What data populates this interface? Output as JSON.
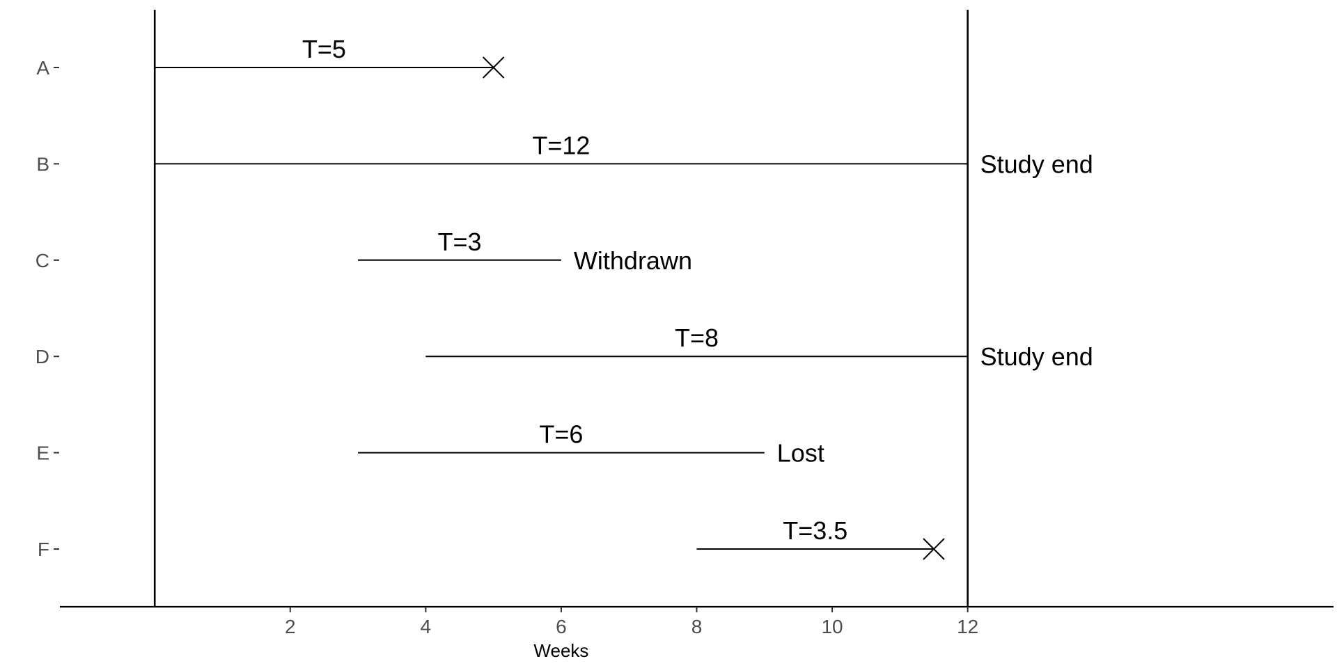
{
  "chart_data": {
    "type": "timeline",
    "xlabel": "Weeks",
    "ylabel": "",
    "x_ticks": [
      2,
      4,
      6,
      8,
      10,
      12
    ],
    "xlim": [
      -1.4,
      17.4
    ],
    "reference_lines": [
      0,
      12
    ],
    "grid": false,
    "categories": [
      "A",
      "B",
      "C",
      "D",
      "E",
      "F"
    ],
    "segments": [
      {
        "subject": "A",
        "start": 0,
        "end": 5,
        "label": "T=5",
        "end_marker": "cross",
        "end_text": ""
      },
      {
        "subject": "B",
        "start": 0,
        "end": 12,
        "label": "T=12",
        "end_marker": "none",
        "end_text": "Study end"
      },
      {
        "subject": "C",
        "start": 3,
        "end": 6,
        "label": "T=3",
        "end_marker": "none",
        "end_text": "Withdrawn"
      },
      {
        "subject": "D",
        "start": 4,
        "end": 12,
        "label": "T=8",
        "end_marker": "none",
        "end_text": "Study end"
      },
      {
        "subject": "E",
        "start": 3,
        "end": 9,
        "label": "T=6",
        "end_marker": "none",
        "end_text": "Lost"
      },
      {
        "subject": "F",
        "start": 8,
        "end": 11.5,
        "label": "T=3.5",
        "end_marker": "cross",
        "end_text": ""
      }
    ]
  }
}
